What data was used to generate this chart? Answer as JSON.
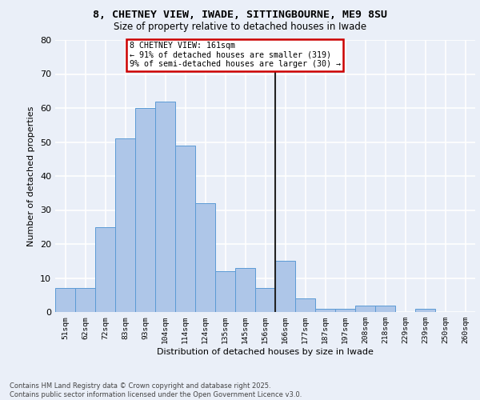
{
  "title_line1": "8, CHETNEY VIEW, IWADE, SITTINGBOURNE, ME9 8SU",
  "title_line2": "Size of property relative to detached houses in Iwade",
  "xlabel": "Distribution of detached houses by size in Iwade",
  "ylabel": "Number of detached properties",
  "categories": [
    "51sqm",
    "62sqm",
    "72sqm",
    "83sqm",
    "93sqm",
    "104sqm",
    "114sqm",
    "124sqm",
    "135sqm",
    "145sqm",
    "156sqm",
    "166sqm",
    "177sqm",
    "187sqm",
    "197sqm",
    "208sqm",
    "218sqm",
    "229sqm",
    "239sqm",
    "250sqm",
    "260sqm"
  ],
  "values": [
    7,
    7,
    25,
    51,
    60,
    62,
    49,
    32,
    12,
    13,
    7,
    15,
    4,
    1,
    1,
    2,
    2,
    0,
    1,
    0,
    0
  ],
  "bar_color": "#aec6e8",
  "bar_edge_color": "#5b9bd5",
  "annotation_box_color": "#ffffff",
  "annotation_box_edge_color": "#cc0000",
  "vline_x": 10.5,
  "ylim": [
    0,
    80
  ],
  "yticks": [
    0,
    10,
    20,
    30,
    40,
    50,
    60,
    70,
    80
  ],
  "background_color": "#eaeff8",
  "grid_color": "#ffffff",
  "footer": "Contains HM Land Registry data © Crown copyright and database right 2025.\nContains public sector information licensed under the Open Government Licence v3.0."
}
